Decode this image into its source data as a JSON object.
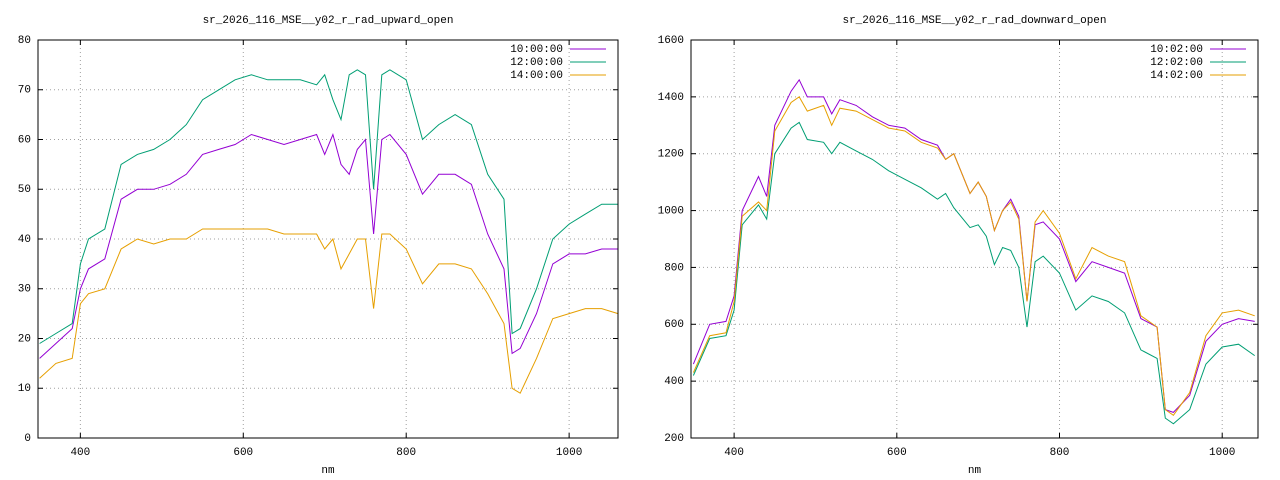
{
  "chart_data": [
    {
      "type": "line",
      "title": "sr_2026_116_MSE__y02_r_rad_upward_open",
      "x_label": "nm",
      "x": [
        350,
        370,
        390,
        400,
        410,
        430,
        450,
        470,
        490,
        510,
        530,
        550,
        570,
        590,
        610,
        630,
        650,
        670,
        690,
        700,
        710,
        720,
        730,
        740,
        750,
        760,
        770,
        780,
        800,
        820,
        840,
        860,
        880,
        900,
        920,
        930,
        940,
        960,
        980,
        1000,
        1020,
        1040,
        1060
      ],
      "series": [
        {
          "name": "10:00:00",
          "color": "#9400d3",
          "values": [
            16,
            19,
            22,
            30,
            34,
            36,
            48,
            50,
            50,
            51,
            53,
            57,
            58,
            59,
            61,
            60,
            59,
            60,
            61,
            57,
            61,
            55,
            53,
            58,
            60,
            41,
            60,
            61,
            57,
            49,
            53,
            53,
            51,
            41,
            34,
            17,
            18,
            25,
            35,
            37,
            37,
            38,
            38
          ]
        },
        {
          "name": "12:00:00",
          "color": "#009e73",
          "values": [
            19,
            21,
            23,
            35,
            40,
            42,
            55,
            57,
            58,
            60,
            63,
            68,
            70,
            72,
            73,
            72,
            72,
            72,
            71,
            73,
            68,
            64,
            73,
            74,
            73,
            50,
            73,
            74,
            72,
            60,
            63,
            65,
            63,
            53,
            48,
            21,
            22,
            30,
            40,
            43,
            45,
            47,
            47
          ]
        },
        {
          "name": "14:00:00",
          "color": "#e69f00",
          "values": [
            12,
            15,
            16,
            27,
            29,
            30,
            38,
            40,
            39,
            40,
            40,
            42,
            42,
            42,
            42,
            42,
            41,
            41,
            41,
            38,
            40,
            34,
            37,
            40,
            40,
            26,
            41,
            41,
            38,
            31,
            35,
            35,
            34,
            29,
            23,
            10,
            9,
            16,
            24,
            25,
            26,
            26,
            25
          ]
        }
      ],
      "xlim": [
        348,
        1060
      ],
      "xticks": [
        400,
        600,
        800,
        1000
      ],
      "ylim": [
        0,
        80
      ],
      "yticks": [
        0,
        10,
        20,
        30,
        40,
        50,
        60,
        70,
        80
      ],
      "grid": true,
      "legend": "top-right"
    },
    {
      "type": "line",
      "title": "sr_2026_116_MSE__y02_r_rad_downward_open",
      "x_label": "nm",
      "x": [
        350,
        370,
        390,
        400,
        410,
        430,
        440,
        450,
        470,
        480,
        490,
        510,
        520,
        530,
        550,
        570,
        590,
        610,
        630,
        650,
        660,
        670,
        690,
        700,
        710,
        720,
        730,
        740,
        750,
        760,
        770,
        780,
        800,
        820,
        840,
        860,
        880,
        900,
        920,
        930,
        940,
        960,
        980,
        1000,
        1020,
        1040
      ],
      "series": [
        {
          "name": "10:02:00",
          "color": "#9400d3",
          "values": [
            460,
            600,
            610,
            700,
            1000,
            1120,
            1050,
            1300,
            1420,
            1460,
            1400,
            1400,
            1340,
            1390,
            1370,
            1330,
            1300,
            1290,
            1250,
            1230,
            1180,
            1200,
            1060,
            1100,
            1050,
            930,
            1000,
            1040,
            980,
            680,
            950,
            960,
            900,
            750,
            820,
            800,
            780,
            620,
            590,
            300,
            290,
            350,
            540,
            600,
            620,
            610
          ]
        },
        {
          "name": "12:02:00",
          "color": "#009e73",
          "values": [
            420,
            550,
            560,
            650,
            950,
            1020,
            970,
            1200,
            1290,
            1310,
            1250,
            1240,
            1200,
            1240,
            1210,
            1180,
            1140,
            1110,
            1080,
            1040,
            1060,
            1010,
            940,
            950,
            910,
            810,
            870,
            860,
            800,
            590,
            820,
            840,
            780,
            650,
            700,
            680,
            640,
            510,
            480,
            270,
            250,
            300,
            460,
            520,
            530,
            490
          ]
        },
        {
          "name": "14:02:00",
          "color": "#e69f00",
          "values": [
            430,
            560,
            570,
            680,
            980,
            1030,
            1000,
            1280,
            1380,
            1400,
            1350,
            1370,
            1300,
            1360,
            1350,
            1320,
            1290,
            1280,
            1240,
            1220,
            1180,
            1200,
            1060,
            1100,
            1050,
            930,
            1000,
            1030,
            970,
            680,
            960,
            1000,
            920,
            760,
            870,
            840,
            820,
            630,
            590,
            300,
            280,
            360,
            560,
            640,
            650,
            630
          ]
        }
      ],
      "xlim": [
        347,
        1044
      ],
      "xticks": [
        400,
        600,
        800,
        1000
      ],
      "ylim": [
        200,
        1600
      ],
      "yticks": [
        200,
        400,
        600,
        800,
        1000,
        1200,
        1400,
        1600
      ],
      "grid": true,
      "legend": "top-right"
    }
  ]
}
